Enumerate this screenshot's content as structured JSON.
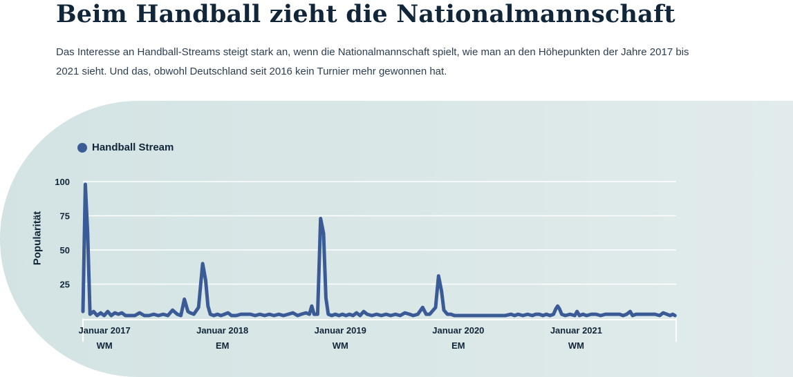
{
  "header": {
    "title": "Beim Handball zieht die Nationalmannschaft",
    "lead": "Das Interesse an Handball-Streams steigt stark an, wenn die Nationalmannschaft spielt, wie man an den Höhepunkten der Jahre 2017 bis 2021 sieht. Und das, obwohl Deutschland seit 2016 kein Turnier mehr gewonnen hat."
  },
  "colors": {
    "series": "#3b5b96",
    "text": "#12263a",
    "panel": "#d7e5e5"
  },
  "chart_data": {
    "type": "line",
    "title": "",
    "ylabel": "Popularität",
    "xlabel": "",
    "ylim": [
      0,
      100
    ],
    "xlim": [
      2016.97,
      2022.0
    ],
    "yticks": [
      25,
      50,
      75,
      100
    ],
    "grid": true,
    "legend_position": "top-left",
    "x_ticks": [
      {
        "x": 2017.0,
        "label": "Januar 2017",
        "event": "WM"
      },
      {
        "x": 2018.0,
        "label": "Januar 2018",
        "event": "EM"
      },
      {
        "x": 2019.0,
        "label": "Januar 2019",
        "event": "WM"
      },
      {
        "x": 2020.0,
        "label": "Januar 2020",
        "event": "EM"
      },
      {
        "x": 2021.0,
        "label": "Januar 2021",
        "event": "WM"
      }
    ],
    "series": [
      {
        "name": "Handball Stream",
        "color": "#3b5b96",
        "points": [
          [
            2016.97,
            5
          ],
          [
            2016.99,
            98
          ],
          [
            2017.01,
            62
          ],
          [
            2017.03,
            3
          ],
          [
            2017.06,
            5
          ],
          [
            2017.09,
            2
          ],
          [
            2017.12,
            4
          ],
          [
            2017.15,
            2
          ],
          [
            2017.18,
            5
          ],
          [
            2017.21,
            2
          ],
          [
            2017.24,
            4
          ],
          [
            2017.27,
            3
          ],
          [
            2017.3,
            4
          ],
          [
            2017.33,
            2
          ],
          [
            2017.37,
            2
          ],
          [
            2017.41,
            2
          ],
          [
            2017.45,
            4
          ],
          [
            2017.49,
            2
          ],
          [
            2017.53,
            2
          ],
          [
            2017.57,
            3
          ],
          [
            2017.61,
            2
          ],
          [
            2017.65,
            3
          ],
          [
            2017.69,
            2
          ],
          [
            2017.73,
            6
          ],
          [
            2017.77,
            3
          ],
          [
            2017.8,
            2
          ],
          [
            2017.83,
            14
          ],
          [
            2017.86,
            5
          ],
          [
            2017.88,
            4
          ],
          [
            2017.91,
            3
          ],
          [
            2017.95,
            8
          ],
          [
            2017.985,
            40
          ],
          [
            2018.01,
            28
          ],
          [
            2018.03,
            9
          ],
          [
            2018.05,
            3
          ],
          [
            2018.08,
            2
          ],
          [
            2018.11,
            3
          ],
          [
            2018.14,
            2
          ],
          [
            2018.17,
            3
          ],
          [
            2018.2,
            4
          ],
          [
            2018.23,
            2
          ],
          [
            2018.27,
            2
          ],
          [
            2018.31,
            3
          ],
          [
            2018.35,
            3
          ],
          [
            2018.39,
            3
          ],
          [
            2018.43,
            2
          ],
          [
            2018.47,
            3
          ],
          [
            2018.51,
            2
          ],
          [
            2018.55,
            3
          ],
          [
            2018.59,
            2
          ],
          [
            2018.63,
            3
          ],
          [
            2018.67,
            2
          ],
          [
            2018.71,
            3
          ],
          [
            2018.75,
            4
          ],
          [
            2018.79,
            2
          ],
          [
            2018.82,
            3
          ],
          [
            2018.86,
            4
          ],
          [
            2018.89,
            3
          ],
          [
            2018.91,
            9
          ],
          [
            2018.93,
            3
          ],
          [
            2018.96,
            3
          ],
          [
            2018.985,
            73
          ],
          [
            2019.01,
            62
          ],
          [
            2019.03,
            15
          ],
          [
            2019.05,
            3
          ],
          [
            2019.08,
            2
          ],
          [
            2019.11,
            3
          ],
          [
            2019.14,
            2
          ],
          [
            2019.17,
            3
          ],
          [
            2019.2,
            2
          ],
          [
            2019.23,
            3
          ],
          [
            2019.26,
            2
          ],
          [
            2019.29,
            4
          ],
          [
            2019.32,
            2
          ],
          [
            2019.35,
            5
          ],
          [
            2019.38,
            3
          ],
          [
            2019.42,
            2
          ],
          [
            2019.46,
            3
          ],
          [
            2019.5,
            2
          ],
          [
            2019.54,
            3
          ],
          [
            2019.58,
            2
          ],
          [
            2019.62,
            3
          ],
          [
            2019.66,
            2
          ],
          [
            2019.7,
            4
          ],
          [
            2019.74,
            3
          ],
          [
            2019.77,
            2
          ],
          [
            2019.81,
            3
          ],
          [
            2019.85,
            8
          ],
          [
            2019.88,
            3
          ],
          [
            2019.91,
            3
          ],
          [
            2019.96,
            8
          ],
          [
            2019.985,
            31
          ],
          [
            2020.01,
            20
          ],
          [
            2020.03,
            6
          ],
          [
            2020.06,
            3
          ],
          [
            2020.09,
            3
          ],
          [
            2020.12,
            2
          ],
          [
            2020.15,
            2
          ],
          [
            2020.2,
            2
          ],
          [
            2020.25,
            2
          ],
          [
            2020.3,
            2
          ],
          [
            2020.35,
            2
          ],
          [
            2020.4,
            2
          ],
          [
            2020.45,
            2
          ],
          [
            2020.5,
            2
          ],
          [
            2020.55,
            2
          ],
          [
            2020.6,
            3
          ],
          [
            2020.63,
            2
          ],
          [
            2020.66,
            3
          ],
          [
            2020.7,
            2
          ],
          [
            2020.74,
            3
          ],
          [
            2020.78,
            2
          ],
          [
            2020.81,
            3
          ],
          [
            2020.84,
            3
          ],
          [
            2020.87,
            2
          ],
          [
            2020.9,
            3
          ],
          [
            2020.93,
            2
          ],
          [
            2020.96,
            3
          ],
          [
            2020.98,
            7
          ],
          [
            2020.995,
            9
          ],
          [
            2021.01,
            7
          ],
          [
            2021.03,
            3
          ],
          [
            2021.06,
            2
          ],
          [
            2021.1,
            3
          ],
          [
            2021.14,
            2
          ],
          [
            2021.16,
            5
          ],
          [
            2021.18,
            2
          ],
          [
            2021.21,
            3
          ],
          [
            2021.24,
            2
          ],
          [
            2021.28,
            3
          ],
          [
            2021.32,
            3
          ],
          [
            2021.36,
            2
          ],
          [
            2021.4,
            3
          ],
          [
            2021.44,
            3
          ],
          [
            2021.48,
            3
          ],
          [
            2021.52,
            3
          ],
          [
            2021.55,
            2
          ],
          [
            2021.58,
            3
          ],
          [
            2021.61,
            5
          ],
          [
            2021.63,
            2
          ],
          [
            2021.66,
            3
          ],
          [
            2021.7,
            3
          ],
          [
            2021.74,
            3
          ],
          [
            2021.78,
            3
          ],
          [
            2021.82,
            3
          ],
          [
            2021.86,
            2
          ],
          [
            2021.89,
            4
          ],
          [
            2021.92,
            3
          ],
          [
            2021.95,
            2
          ],
          [
            2021.97,
            3
          ],
          [
            2021.99,
            2
          ]
        ]
      }
    ]
  }
}
